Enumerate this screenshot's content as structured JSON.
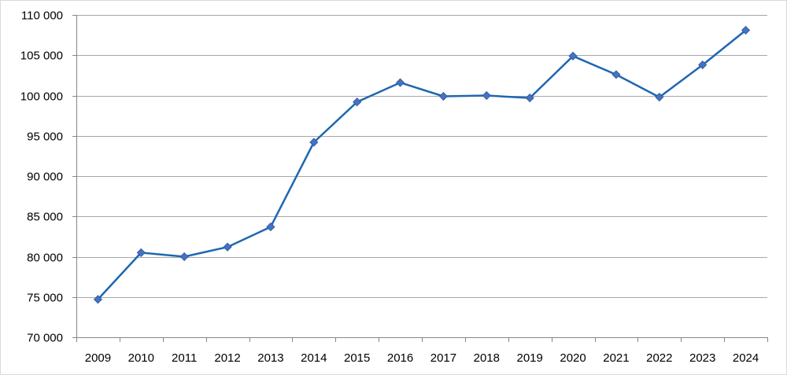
{
  "chart_data": {
    "type": "line",
    "title": "",
    "xlabel": "",
    "ylabel": "",
    "categories": [
      "2009",
      "2010",
      "2011",
      "2012",
      "2013",
      "2014",
      "2015",
      "2016",
      "2017",
      "2018",
      "2019",
      "2020",
      "2021",
      "2022",
      "2023",
      "2024"
    ],
    "series": [
      {
        "values": [
          74700,
          80500,
          80000,
          81200,
          83700,
          94200,
          99200,
          101600,
          99900,
          100000,
          99700,
          104900,
          102600,
          99800,
          103800,
          108100
        ]
      }
    ],
    "ylim": [
      70000,
      110000
    ],
    "yticks": [
      70000,
      75000,
      80000,
      85000,
      90000,
      95000,
      100000,
      105000,
      110000
    ],
    "ytick_labels": [
      "70 000",
      "75 000",
      "80 000",
      "85 000",
      "90 000",
      "95 000",
      "100 000",
      "105 000",
      "110 000"
    ],
    "grid": true,
    "legend": "none",
    "line_color": "#1f67b1",
    "marker_color": "#4472c4",
    "marker": "diamond",
    "gridline_color": "#a6a6a6"
  }
}
